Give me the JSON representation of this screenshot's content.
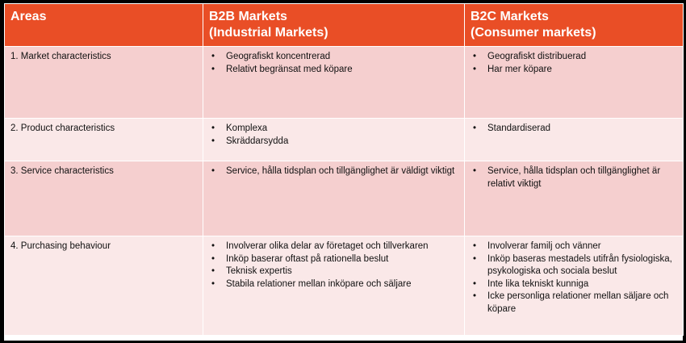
{
  "header": {
    "areas": "Areas",
    "b2b_line1": "B2B Markets",
    "b2b_line2": "(Industrial Markets)",
    "b2c_line1": "B2C Markets",
    "b2c_line2": "(Consumer markets)"
  },
  "rows": [
    {
      "area": "1. Market characteristics",
      "b2b": [
        "Geografiskt koncentrerad",
        "Relativt begränsat med köpare"
      ],
      "b2c": [
        "Geografiskt distribuerad",
        "Har mer köpare"
      ]
    },
    {
      "area": "2. Product characteristics",
      "b2b": [
        "Komplexa",
        "Skräddarsydda"
      ],
      "b2c": [
        "Standardiserad"
      ]
    },
    {
      "area": "3. Service characteristics",
      "b2b": [
        "Service, hålla tidsplan och tillgänglighet är väldigt viktigt"
      ],
      "b2c": [
        "Service, hålla tidsplan och tillgänglighet är relativt viktigt"
      ]
    },
    {
      "area": "4. Purchasing behaviour",
      "b2b": [
        "Involverar olika delar av företaget och tillverkaren",
        "Inköp baserar oftast på rationella beslut",
        "Teknisk expertis",
        "Stabila relationer mellan inköpare och säljare"
      ],
      "b2c": [
        "Involverar familj och vänner",
        "Inköp baseras mestadels utifrån fysiologiska, psykologiska och sociala beslut",
        "Inte lika tekniskt kunniga",
        "Icke personliga relationer mellan säljare och köpare"
      ]
    }
  ],
  "colors": {
    "header": "#e94e26",
    "row_dark": "#f5cfcf",
    "row_light": "#fae8e8",
    "background": "#000000"
  }
}
